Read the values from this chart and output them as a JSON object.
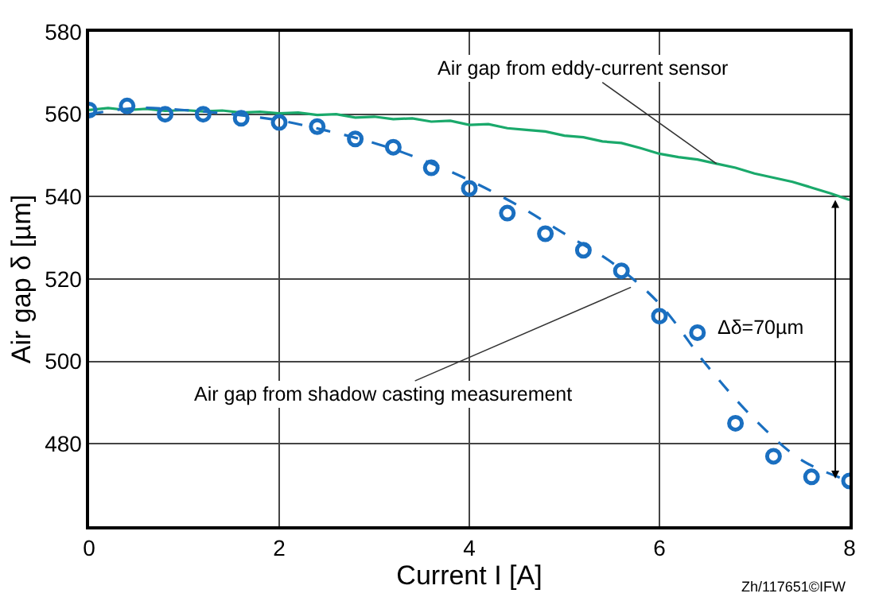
{
  "chart_data": {
    "type": "line",
    "xlabel": "Current I [A]",
    "ylabel": "Air gap δ [µm]",
    "xlim": [
      0,
      8
    ],
    "xticks": [
      0,
      2,
      4,
      6,
      8
    ],
    "ylim": [
      460,
      580
    ],
    "yticks": [
      480,
      500,
      520,
      540,
      560,
      580
    ],
    "grid": true,
    "legend": false,
    "series": [
      {
        "color": "#1aa96b",
        "line_style": "solid",
        "marker": "none",
        "x": [
          0,
          0.2,
          0.4,
          0.6,
          0.8,
          1.0,
          1.2,
          1.4,
          1.6,
          1.8,
          2.0,
          2.2,
          2.4,
          2.6,
          2.8,
          3.0,
          3.2,
          3.4,
          3.6,
          3.8,
          4.0,
          4.2,
          4.4,
          4.6,
          4.8,
          5.0,
          5.2,
          5.4,
          5.6,
          5.8,
          6.0,
          6.2,
          6.4,
          6.6,
          6.8,
          7.0,
          7.2,
          7.4,
          7.6,
          7.8,
          8.0
        ],
        "values": [
          561,
          561.5,
          561,
          561.3,
          560.8,
          561,
          560.7,
          560.9,
          560.4,
          560.6,
          560.2,
          560.4,
          559.8,
          560,
          559.2,
          559.4,
          558.8,
          559,
          558.2,
          558.4,
          557.4,
          557.6,
          556.6,
          556.2,
          555.8,
          554.8,
          554.4,
          553.4,
          553,
          551.8,
          550.4,
          549.6,
          549,
          548,
          547,
          545.6,
          544.6,
          543.6,
          542.2,
          540.8,
          539.2
        ]
      },
      {
        "color": "#1a6fc0",
        "line_style": "dashed",
        "marker": "none",
        "x": [
          0,
          0.5,
          1.0,
          1.5,
          2.0,
          2.5,
          3.0,
          3.5,
          4.0,
          4.5,
          5.0,
          5.5,
          6.0,
          6.5,
          7.0,
          7.5,
          8.0
        ],
        "values": [
          560,
          561.5,
          561,
          560,
          558.5,
          556,
          553,
          549,
          544,
          538,
          531,
          524,
          514,
          499,
          486,
          476,
          471
        ]
      },
      {
        "type": "scatter",
        "color": "#1a6fc0",
        "marker": "circle",
        "x": [
          0,
          0.4,
          0.8,
          1.2,
          1.6,
          2.0,
          2.4,
          2.8,
          3.2,
          3.6,
          4.0,
          4.4,
          4.8,
          5.2,
          5.6,
          6.0,
          6.4,
          6.8,
          7.2,
          7.6,
          8.0
        ],
        "values": [
          561,
          562,
          560,
          560,
          559,
          558,
          557,
          554,
          552,
          547,
          542,
          536,
          531,
          527,
          522,
          511,
          507,
          485,
          477,
          472,
          471
        ]
      }
    ],
    "annotations": [
      {
        "text": "Air gap from eddy-current sensor",
        "x": 6.6,
        "y": 548
      },
      {
        "text": "Air gap from shadow casting measurement",
        "x": 5.7,
        "y": 518
      },
      "Δδ=70µm",
      "Zh/117651©IFW"
    ]
  }
}
